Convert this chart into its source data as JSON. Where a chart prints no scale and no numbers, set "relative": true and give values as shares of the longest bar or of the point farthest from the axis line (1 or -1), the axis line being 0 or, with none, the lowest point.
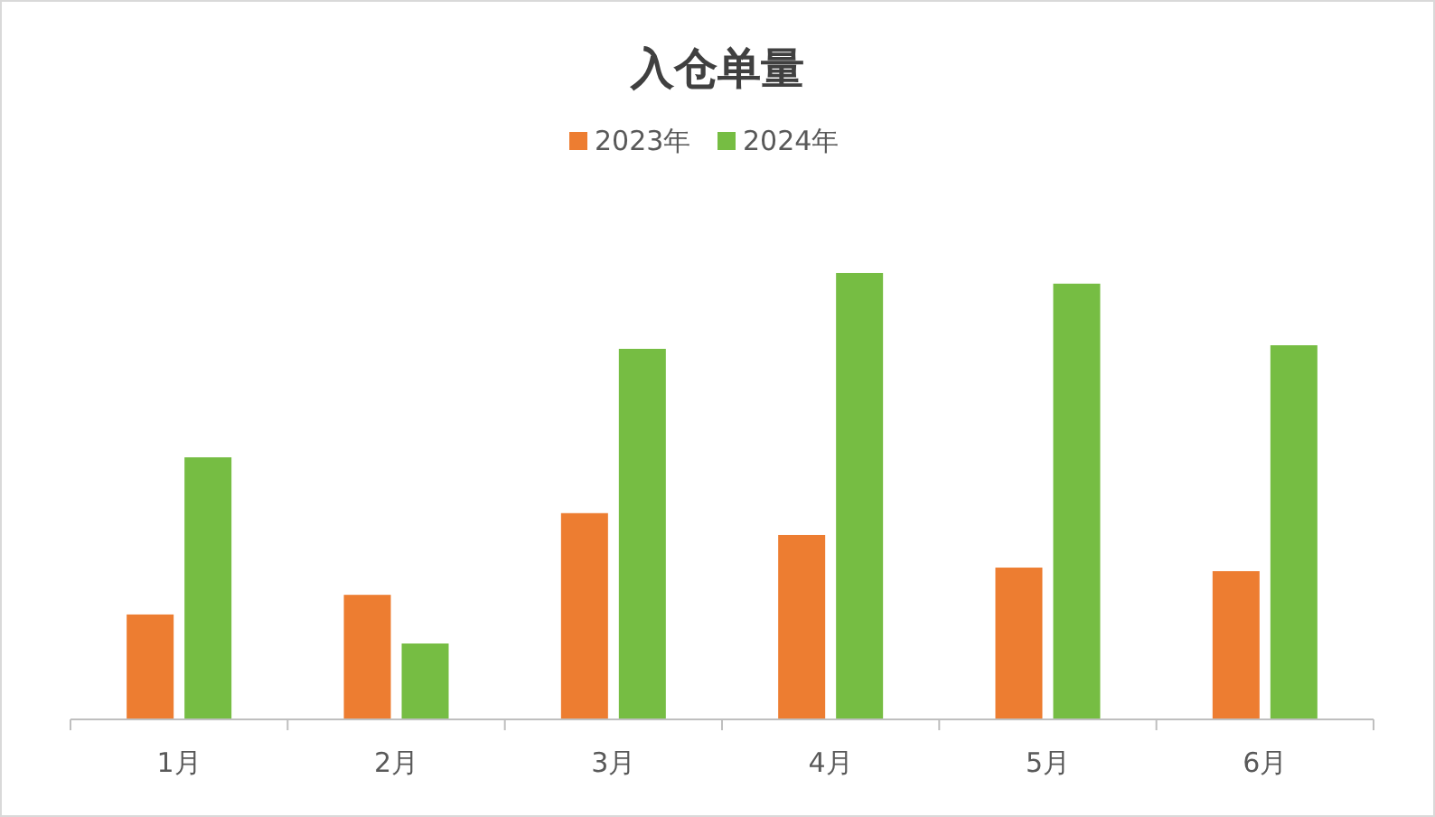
{
  "chart_data": {
    "type": "bar",
    "title": "入仓单量",
    "relative": true,
    "legend": "top",
    "categories": [
      "1月",
      "2月",
      "3月",
      "4月",
      "5月",
      "6月"
    ],
    "series": [
      {
        "name": "2023年",
        "color": "#ed7d31",
        "values": [
          0.235,
          0.279,
          0.462,
          0.413,
          0.34,
          0.332
        ]
      },
      {
        "name": "2024年",
        "color": "#76bd43",
        "values": [
          0.587,
          0.17,
          0.83,
          1,
          0.976,
          0.838
        ]
      }
    ]
  }
}
